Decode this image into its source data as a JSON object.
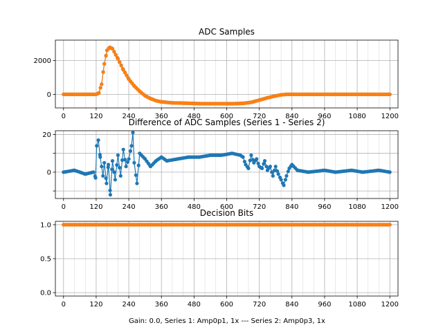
{
  "colors": {
    "series1": "#ff7f0e",
    "series2": "#1f77b4",
    "grid": "#b0b0b0"
  },
  "caption": "Gain: 0.0, Series 1: Amp0p1, 1x --- Series 2: Amp0p3, 1x",
  "chart_data": [
    {
      "type": "scatter-line",
      "title": "ADC Samples",
      "xlim": [
        -30,
        1230
      ],
      "ylim": [
        -800,
        3200
      ],
      "xticks": [
        0,
        120,
        240,
        360,
        480,
        600,
        720,
        840,
        960,
        1080,
        1200
      ],
      "yticks": [
        0,
        2000
      ],
      "minor_x_step": 40,
      "grid": true,
      "series": [
        {
          "name": "Series 2",
          "color": "#1f77b4",
          "points": [
            [
              0,
              0
            ],
            [
              120,
              0
            ],
            [
              130,
              80
            ],
            [
              140,
              600
            ],
            [
              150,
              1800
            ],
            [
              160,
              2600
            ],
            [
              170,
              2780
            ],
            [
              180,
              2700
            ],
            [
              200,
              2100
            ],
            [
              220,
              1450
            ],
            [
              240,
              900
            ],
            [
              260,
              500
            ],
            [
              280,
              180
            ],
            [
              300,
              -80
            ],
            [
              320,
              -250
            ],
            [
              340,
              -370
            ],
            [
              360,
              -440
            ],
            [
              400,
              -500
            ],
            [
              450,
              -520
            ],
            [
              500,
              -545
            ],
            [
              560,
              -545
            ],
            [
              620,
              -550
            ],
            [
              660,
              -530
            ],
            [
              690,
              -470
            ],
            [
              720,
              -340
            ],
            [
              750,
              -200
            ],
            [
              780,
              -90
            ],
            [
              800,
              -30
            ],
            [
              820,
              0
            ],
            [
              900,
              0
            ],
            [
              1000,
              0
            ],
            [
              1100,
              0
            ],
            [
              1200,
              0
            ]
          ]
        },
        {
          "name": "Series 1",
          "color": "#ff7f0e",
          "points": [
            [
              0,
              0
            ],
            [
              120,
              0
            ],
            [
              130,
              70
            ],
            [
              140,
              590
            ],
            [
              150,
              1790
            ],
            [
              160,
              2590
            ],
            [
              170,
              2770
            ],
            [
              180,
              2690
            ],
            [
              200,
              2090
            ],
            [
              220,
              1440
            ],
            [
              240,
              890
            ],
            [
              260,
              495
            ],
            [
              280,
              175
            ],
            [
              300,
              -85
            ],
            [
              320,
              -255
            ],
            [
              340,
              -375
            ],
            [
              360,
              -445
            ],
            [
              400,
              -505
            ],
            [
              450,
              -525
            ],
            [
              500,
              -550
            ],
            [
              560,
              -550
            ],
            [
              620,
              -555
            ],
            [
              660,
              -535
            ],
            [
              690,
              -475
            ],
            [
              720,
              -345
            ],
            [
              750,
              -205
            ],
            [
              780,
              -92
            ],
            [
              800,
              -32
            ],
            [
              820,
              0
            ],
            [
              900,
              0
            ],
            [
              1000,
              0
            ],
            [
              1100,
              0
            ],
            [
              1200,
              0
            ]
          ]
        }
      ]
    },
    {
      "type": "scatter-line",
      "title": "Difference of ADC Samples (Series 1 - Series 2)",
      "xlim": [
        -30,
        1230
      ],
      "ylim": [
        -14,
        22
      ],
      "xticks": [
        0,
        120,
        240,
        360,
        480,
        600,
        720,
        840,
        960,
        1080,
        1200
      ],
      "yticks": [
        -10,
        0,
        10,
        20
      ],
      "yticks_labeled": [
        0,
        20
      ],
      "minor_x_step": 40,
      "grid": true,
      "series": [
        {
          "name": "Difference",
          "color": "#1f77b4",
          "points": [
            [
              0,
              0
            ],
            [
              40,
              1
            ],
            [
              80,
              -1
            ],
            [
              110,
              0
            ],
            [
              118,
              -3
            ],
            [
              122,
              14
            ],
            [
              128,
              17
            ],
            [
              135,
              8
            ],
            [
              140,
              3
            ],
            [
              145,
              -2
            ],
            [
              150,
              5
            ],
            [
              158,
              -6
            ],
            [
              165,
              4
            ],
            [
              172,
              -12
            ],
            [
              180,
              6
            ],
            [
              190,
              -4
            ],
            [
              200,
              9
            ],
            [
              210,
              -2
            ],
            [
              220,
              12
            ],
            [
              230,
              3
            ],
            [
              240,
              7
            ],
            [
              250,
              14
            ],
            [
              255,
              21
            ],
            [
              260,
              5
            ],
            [
              270,
              -6
            ],
            [
              280,
              10
            ],
            [
              300,
              7
            ],
            [
              320,
              3
            ],
            [
              340,
              6
            ],
            [
              360,
              8
            ],
            [
              380,
              6
            ],
            [
              420,
              7
            ],
            [
              460,
              8
            ],
            [
              500,
              8
            ],
            [
              540,
              9
            ],
            [
              580,
              9
            ],
            [
              620,
              10
            ],
            [
              650,
              9
            ],
            [
              660,
              8
            ],
            [
              670,
              4
            ],
            [
              680,
              2
            ],
            [
              690,
              9
            ],
            [
              700,
              5
            ],
            [
              710,
              7
            ],
            [
              720,
              3
            ],
            [
              730,
              2
            ],
            [
              740,
              6
            ],
            [
              750,
              1
            ],
            [
              760,
              3
            ],
            [
              770,
              -2
            ],
            [
              780,
              3
            ],
            [
              790,
              -1
            ],
            [
              800,
              -4
            ],
            [
              810,
              -7
            ],
            [
              820,
              -2
            ],
            [
              830,
              2
            ],
            [
              840,
              4
            ],
            [
              860,
              1
            ],
            [
              900,
              0
            ],
            [
              960,
              1
            ],
            [
              1000,
              0
            ],
            [
              1060,
              1
            ],
            [
              1100,
              0
            ],
            [
              1160,
              1
            ],
            [
              1200,
              0
            ]
          ]
        }
      ]
    },
    {
      "type": "scatter-line",
      "title": "Decision Bits",
      "xlim": [
        -30,
        1230
      ],
      "ylim": [
        -0.05,
        1.05
      ],
      "xticks": [
        0,
        120,
        240,
        360,
        480,
        600,
        720,
        840,
        960,
        1080,
        1200
      ],
      "yticks": [
        0.0,
        0.5,
        1.0
      ],
      "ytick_format": 1,
      "minor_x_step": 40,
      "grid": true,
      "series": [
        {
          "name": "Series 2",
          "color": "#1f77b4",
          "points": [
            [
              0,
              1
            ],
            [
              1200,
              1
            ]
          ]
        },
        {
          "name": "Series 1",
          "color": "#ff7f0e",
          "points": [
            [
              0,
              1
            ],
            [
              1200,
              1
            ]
          ]
        }
      ]
    }
  ]
}
